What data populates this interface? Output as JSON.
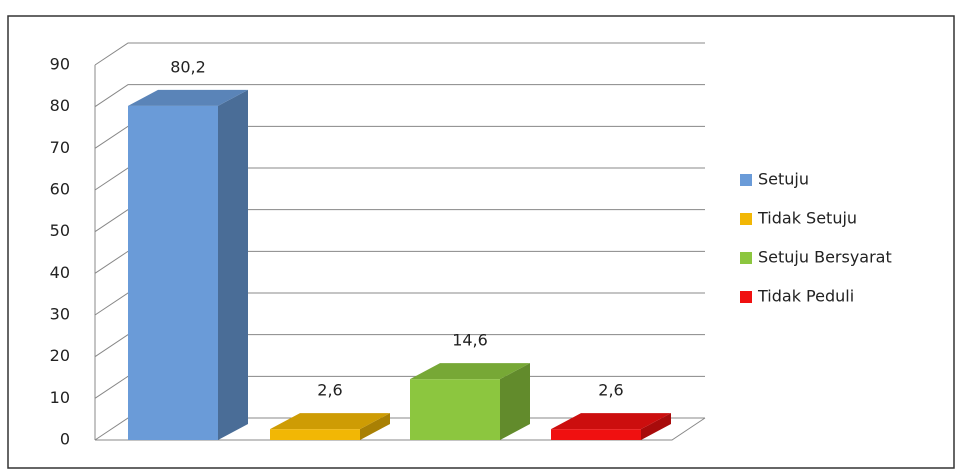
{
  "chart_data": {
    "type": "bar3d",
    "series": [
      {
        "name": "Setuju",
        "color": "#6a9bd8",
        "values": [
          80.2
        ],
        "value_labels": [
          "80,2"
        ]
      },
      {
        "name": "Tidak Setuju",
        "color": "#f2b705",
        "values": [
          2.6
        ],
        "value_labels": [
          "2,6"
        ]
      },
      {
        "name": "Setuju Bersyarat",
        "color": "#8cc63f",
        "values": [
          14.6
        ],
        "value_labels": [
          "14,6"
        ]
      },
      {
        "name": "Tidak Peduli",
        "color": "#f01010",
        "values": [
          2.6
        ],
        "value_labels": [
          "2,6"
        ]
      }
    ],
    "ylim": [
      0,
      90
    ],
    "yticks": [
      0,
      10,
      20,
      30,
      40,
      50,
      60,
      70,
      80,
      90
    ],
    "grid": true,
    "legend": "right"
  }
}
